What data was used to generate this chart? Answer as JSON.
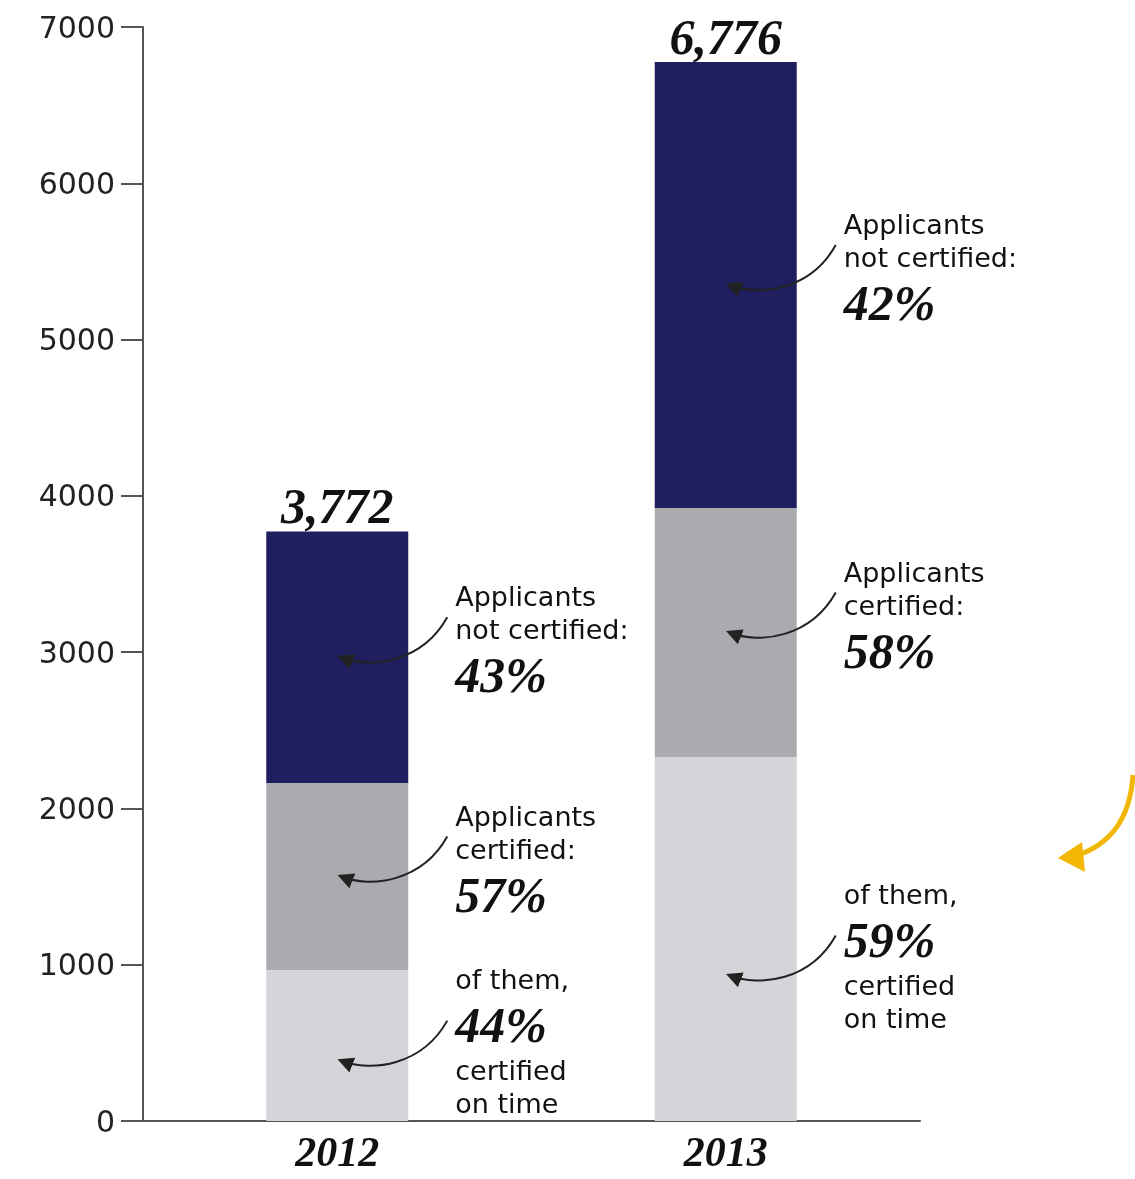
{
  "chart_data": {
    "type": "bar",
    "stacked": true,
    "categories": [
      "2012",
      "2013"
    ],
    "series": [
      {
        "color": "#d4d5d8",
        "values": [
          966,
          2329
        ]
      },
      {
        "color": "#a9abae",
        "values": [
          1197,
          1593
        ]
      },
      {
        "color": "#1f1f5f",
        "values": [
          1609,
          2854
        ]
      }
    ],
    "totals": [
      "3,772",
      "6,776"
    ],
    "ylim": [
      0,
      7000
    ],
    "yticks": [
      0,
      1000,
      2000,
      3000,
      4000,
      5000,
      6000,
      7000
    ],
    "grid": false,
    "annotations": [
      "Applicants\nnot certified:\n43%",
      "Applicants\ncertified:\n57%",
      "of them,\n44%\ncertified\non time",
      "Applicants\nnot certified:\n42%",
      "Applicants\ncertified:\n58%",
      "of them,\n59%\ncertified\non time"
    ]
  }
}
